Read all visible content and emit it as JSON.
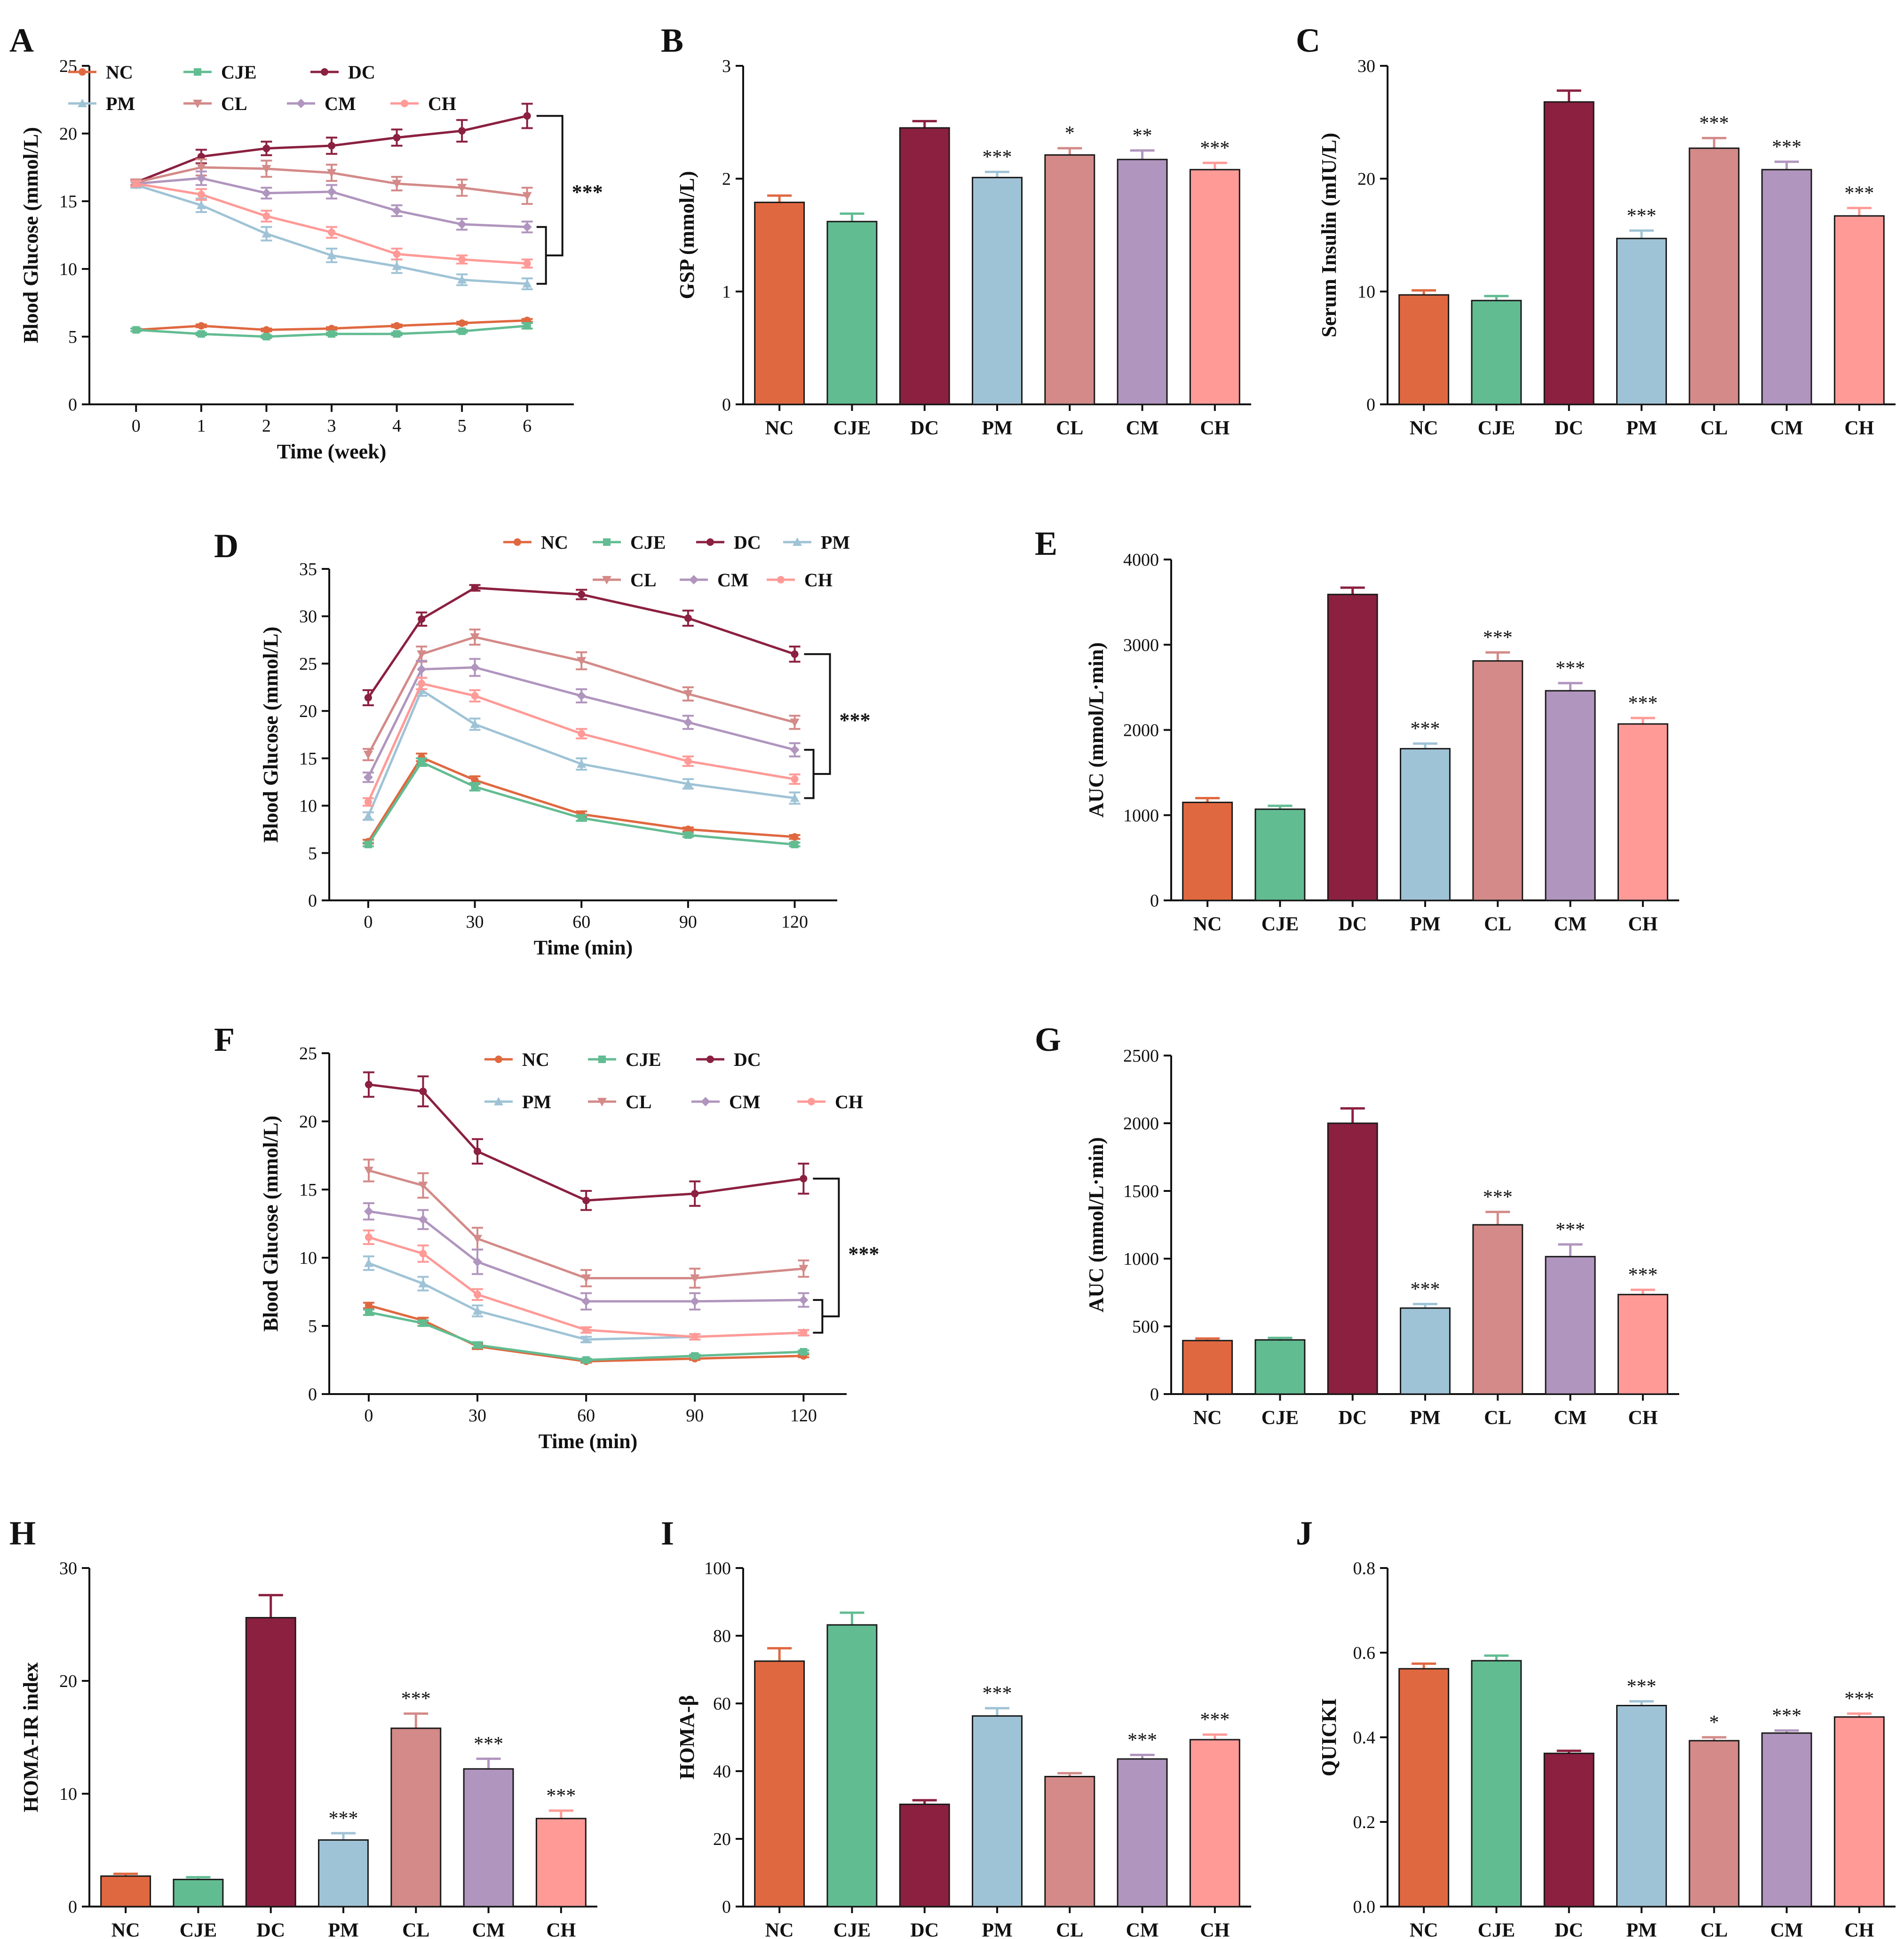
{
  "colors": {
    "NC": "#E06840",
    "CJE": "#62BC92",
    "DC": "#8B2040",
    "PM": "#9FC3D6",
    "CL": "#D38A88",
    "CM": "#B095BE",
    "CH": "#FF9A97"
  },
  "chart_data": [
    {
      "panel": "A",
      "type": "line",
      "ylabel": "Blood Glucose (mmol/L)",
      "xlabel": "Time (week)",
      "ylim": [
        0,
        25
      ],
      "yticks": [
        0,
        5,
        10,
        15,
        20,
        25
      ],
      "x": [
        0,
        1,
        2,
        3,
        4,
        5,
        6
      ],
      "xticks": [
        0,
        1,
        2,
        3,
        4,
        5,
        6
      ],
      "legend": [
        "NC",
        "CJE",
        "DC",
        "PM",
        "CL",
        "CM",
        "CH"
      ],
      "significance": "***",
      "series": [
        {
          "name": "NC",
          "values": [
            5.5,
            5.8,
            5.5,
            5.6,
            5.8,
            6.0,
            6.2
          ],
          "err": [
            0.1,
            0.1,
            0.1,
            0.1,
            0.1,
            0.1,
            0.1
          ]
        },
        {
          "name": "CJE",
          "values": [
            5.5,
            5.2,
            5.0,
            5.2,
            5.2,
            5.4,
            5.8
          ],
          "err": [
            0.1,
            0.1,
            0.1,
            0.1,
            0.1,
            0.1,
            0.2
          ]
        },
        {
          "name": "DC",
          "values": [
            16.4,
            18.3,
            18.9,
            19.1,
            19.7,
            20.2,
            21.3
          ],
          "err": [
            0.2,
            0.5,
            0.5,
            0.6,
            0.6,
            0.8,
            0.9
          ]
        },
        {
          "name": "PM",
          "values": [
            16.2,
            14.7,
            12.6,
            11.0,
            10.2,
            9.2,
            8.9
          ],
          "err": [
            0.2,
            0.5,
            0.5,
            0.5,
            0.5,
            0.4,
            0.4
          ]
        },
        {
          "name": "CL",
          "values": [
            16.4,
            17.5,
            17.4,
            17.1,
            16.3,
            16.0,
            15.4
          ],
          "err": [
            0.2,
            0.6,
            0.6,
            0.6,
            0.5,
            0.6,
            0.6
          ]
        },
        {
          "name": "CM",
          "values": [
            16.3,
            16.7,
            15.6,
            15.7,
            14.3,
            13.3,
            13.1
          ],
          "err": [
            0.2,
            0.5,
            0.4,
            0.5,
            0.4,
            0.4,
            0.4
          ]
        },
        {
          "name": "CH",
          "values": [
            16.3,
            15.5,
            13.9,
            12.7,
            11.1,
            10.7,
            10.4
          ],
          "err": [
            0.2,
            0.4,
            0.4,
            0.4,
            0.4,
            0.3,
            0.3
          ]
        }
      ]
    },
    {
      "panel": "B",
      "type": "bar",
      "ylabel": "GSP (mmol/L)",
      "ylim": [
        0,
        3
      ],
      "yticks": [
        0,
        1,
        2,
        3
      ],
      "categories": [
        "NC",
        "CJE",
        "DC",
        "PM",
        "CL",
        "CM",
        "CH"
      ],
      "values": [
        1.79,
        1.62,
        2.45,
        2.01,
        2.21,
        2.17,
        2.08
      ],
      "err": [
        0.06,
        0.07,
        0.06,
        0.05,
        0.06,
        0.08,
        0.06
      ],
      "stars": [
        "",
        "",
        "",
        "***",
        "*",
        "**",
        "***"
      ]
    },
    {
      "panel": "C",
      "type": "bar",
      "ylabel": "Serum Insulin (mIU/L)",
      "ylim": [
        0,
        30
      ],
      "yticks": [
        0,
        10,
        20,
        30
      ],
      "categories": [
        "NC",
        "CJE",
        "DC",
        "PM",
        "CL",
        "CM",
        "CH"
      ],
      "values": [
        9.7,
        9.2,
        26.8,
        14.7,
        22.7,
        20.8,
        16.7
      ],
      "err": [
        0.4,
        0.4,
        1.0,
        0.7,
        0.9,
        0.7,
        0.7
      ],
      "stars": [
        "",
        "",
        "",
        "***",
        "***",
        "***",
        "***"
      ]
    },
    {
      "panel": "D",
      "type": "line",
      "ylabel": "Blood Glucose (mmol/L)",
      "xlabel": "Time (min)",
      "ylim": [
        0,
        35
      ],
      "yticks": [
        0,
        5,
        10,
        15,
        20,
        25,
        30,
        35
      ],
      "x": [
        0,
        15,
        30,
        60,
        90,
        120
      ],
      "xticks": [
        0,
        30,
        60,
        90,
        120
      ],
      "legend": [
        "NC",
        "CJE",
        "DC",
        "PM",
        "CL",
        "CM",
        "CH"
      ],
      "significance": "***",
      "series": [
        {
          "name": "NC",
          "values": [
            6.2,
            15.1,
            12.7,
            9.1,
            7.5,
            6.7
          ],
          "err": [
            0.2,
            0.4,
            0.4,
            0.3,
            0.2,
            0.2
          ]
        },
        {
          "name": "CJE",
          "values": [
            5.9,
            14.6,
            12.0,
            8.7,
            6.9,
            5.9
          ],
          "err": [
            0.2,
            0.4,
            0.4,
            0.3,
            0.2,
            0.2
          ]
        },
        {
          "name": "DC",
          "values": [
            21.4,
            29.7,
            33.0,
            32.3,
            29.8,
            26.0
          ],
          "err": [
            0.8,
            0.7,
            0.3,
            0.5,
            0.8,
            0.8
          ]
        },
        {
          "name": "PM",
          "values": [
            8.9,
            22.2,
            18.6,
            14.4,
            12.3,
            10.8
          ],
          "err": [
            0.4,
            0.6,
            0.6,
            0.6,
            0.5,
            0.6
          ]
        },
        {
          "name": "CL",
          "values": [
            15.4,
            26.0,
            27.8,
            25.3,
            21.8,
            18.8
          ],
          "err": [
            0.6,
            0.8,
            0.8,
            0.9,
            0.7,
            0.7
          ]
        },
        {
          "name": "CM",
          "values": [
            13.0,
            24.4,
            24.6,
            21.6,
            18.8,
            15.9
          ],
          "err": [
            0.5,
            0.9,
            0.9,
            0.7,
            0.7,
            0.7
          ]
        },
        {
          "name": "CH",
          "values": [
            10.4,
            22.9,
            21.6,
            17.6,
            14.7,
            12.8
          ],
          "err": [
            0.4,
            0.6,
            0.6,
            0.5,
            0.5,
            0.5
          ]
        }
      ]
    },
    {
      "panel": "E",
      "type": "bar",
      "ylabel": "AUC (mmol/L·min)",
      "ylim": [
        0,
        4000
      ],
      "yticks": [
        0,
        1000,
        2000,
        3000,
        4000
      ],
      "categories": [
        "NC",
        "CJE",
        "DC",
        "PM",
        "CL",
        "CM",
        "CH"
      ],
      "values": [
        1150,
        1070,
        3590,
        1780,
        2810,
        2460,
        2070
      ],
      "err": [
        50,
        40,
        80,
        60,
        100,
        90,
        70
      ],
      "stars": [
        "",
        "",
        "",
        "***",
        "***",
        "***",
        "***"
      ]
    },
    {
      "panel": "F",
      "type": "line",
      "ylabel": "Blood Glucose (mmol/L)",
      "xlabel": "Time (min)",
      "ylim": [
        0,
        25
      ],
      "yticks": [
        0,
        5,
        10,
        15,
        20,
        25
      ],
      "x": [
        0,
        15,
        30,
        60,
        90,
        120
      ],
      "xticks": [
        0,
        30,
        60,
        90,
        120
      ],
      "legend": [
        "NC",
        "CJE",
        "DC",
        "PM",
        "CL",
        "CM",
        "CH"
      ],
      "significance": "***",
      "series": [
        {
          "name": "NC",
          "values": [
            6.5,
            5.4,
            3.5,
            2.4,
            2.6,
            2.8
          ],
          "err": [
            0.2,
            0.2,
            0.2,
            0.1,
            0.1,
            0.1
          ]
        },
        {
          "name": "CJE",
          "values": [
            6.0,
            5.2,
            3.6,
            2.5,
            2.8,
            3.1
          ],
          "err": [
            0.2,
            0.2,
            0.2,
            0.1,
            0.1,
            0.1
          ]
        },
        {
          "name": "DC",
          "values": [
            22.7,
            22.2,
            17.8,
            14.2,
            14.7,
            15.8
          ],
          "err": [
            0.9,
            1.1,
            0.9,
            0.7,
            0.9,
            1.1
          ]
        },
        {
          "name": "PM",
          "values": [
            9.6,
            8.1,
            6.1,
            4.0,
            4.2,
            4.5
          ],
          "err": [
            0.5,
            0.5,
            0.4,
            0.2,
            0.2,
            0.2
          ]
        },
        {
          "name": "CL",
          "values": [
            16.4,
            15.3,
            11.4,
            8.5,
            8.5,
            9.2
          ],
          "err": [
            0.8,
            0.9,
            0.8,
            0.6,
            0.7,
            0.6
          ]
        },
        {
          "name": "CM",
          "values": [
            13.4,
            12.8,
            9.7,
            6.8,
            6.8,
            6.9
          ],
          "err": [
            0.6,
            0.7,
            0.9,
            0.6,
            0.6,
            0.5
          ]
        },
        {
          "name": "CH",
          "values": [
            11.5,
            10.3,
            7.3,
            4.7,
            4.2,
            4.5
          ],
          "err": [
            0.5,
            0.6,
            0.4,
            0.2,
            0.2,
            0.2
          ]
        }
      ]
    },
    {
      "panel": "G",
      "type": "bar",
      "ylabel": "AUC (mmol/L·min)",
      "ylim": [
        0,
        2500
      ],
      "yticks": [
        0,
        500,
        1000,
        1500,
        2000,
        2500
      ],
      "categories": [
        "NC",
        "CJE",
        "DC",
        "PM",
        "CL",
        "CM",
        "CH"
      ],
      "values": [
        395,
        400,
        2000,
        635,
        1250,
        1015,
        735
      ],
      "err": [
        15,
        15,
        110,
        30,
        95,
        90,
        35
      ],
      "stars": [
        "",
        "",
        "",
        "***",
        "***",
        "***",
        "***"
      ]
    },
    {
      "panel": "H",
      "type": "bar",
      "ylabel": "HOMA-IR index",
      "ylim": [
        0,
        30
      ],
      "yticks": [
        0,
        10,
        20,
        30
      ],
      "categories": [
        "NC",
        "CJE",
        "DC",
        "PM",
        "CL",
        "CM",
        "CH"
      ],
      "values": [
        2.7,
        2.4,
        25.6,
        5.9,
        15.8,
        12.2,
        7.8
      ],
      "err": [
        0.2,
        0.2,
        2.0,
        0.6,
        1.3,
        0.9,
        0.7
      ],
      "stars": [
        "",
        "",
        "",
        "***",
        "***",
        "***",
        "***"
      ]
    },
    {
      "panel": "I",
      "type": "bar",
      "ylabel": "HOMA-β",
      "ylim": [
        0,
        100
      ],
      "yticks": [
        0,
        20,
        40,
        60,
        80,
        100
      ],
      "categories": [
        "NC",
        "CJE",
        "DC",
        "PM",
        "CL",
        "CM",
        "CH"
      ],
      "values": [
        72.5,
        83.2,
        30.2,
        56.3,
        38.4,
        43.6,
        49.3
      ],
      "err": [
        3.8,
        3.6,
        1.2,
        2.3,
        1.0,
        1.2,
        1.5
      ],
      "stars": [
        "",
        "",
        "",
        "***",
        "",
        "***",
        "***"
      ]
    },
    {
      "panel": "J",
      "type": "bar",
      "ylabel": "QUICKI",
      "ylim": [
        0,
        0.8
      ],
      "yticks": [
        "0.0",
        "0.2",
        "0.4",
        "0.6",
        "0.8"
      ],
      "categories": [
        "NC",
        "CJE",
        "DC",
        "PM",
        "CL",
        "CM",
        "CH"
      ],
      "values": [
        0.562,
        0.581,
        0.362,
        0.475,
        0.392,
        0.41,
        0.448
      ],
      "err": [
        0.012,
        0.012,
        0.006,
        0.01,
        0.008,
        0.006,
        0.008
      ],
      "stars": [
        "",
        "",
        "",
        "***",
        "*",
        "***",
        "***"
      ]
    }
  ]
}
